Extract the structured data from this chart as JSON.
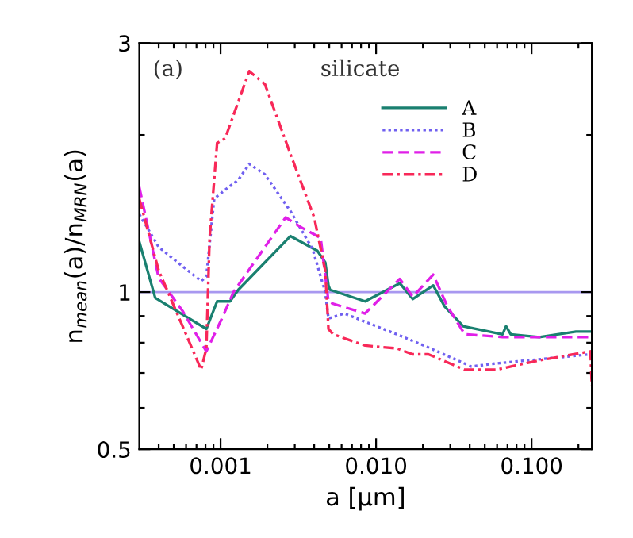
{
  "chart_data": {
    "type": "line",
    "xlabel": "a [μm]",
    "ylabel": "n$_{mean}$(a)/n$_{MRN}$(a)",
    "annotations": [
      "(a)",
      "silicate"
    ],
    "log": "xy",
    "xlim": [
      0.0003,
      0.244
    ],
    "ylim": [
      0.5,
      3
    ],
    "xticks": [
      {
        "value": 0.0004,
        "label": null
      },
      {
        "value": 0.0005,
        "label": null
      },
      {
        "value": 0.0006,
        "label": null
      },
      {
        "value": 0.0007,
        "label": null
      },
      {
        "value": 0.0008,
        "label": null
      },
      {
        "value": 0.0009,
        "label": null
      },
      {
        "value": 0.001,
        "label": "0.001"
      },
      {
        "value": 0.002,
        "label": null
      },
      {
        "value": 0.003,
        "label": null
      },
      {
        "value": 0.004,
        "label": null
      },
      {
        "value": 0.005,
        "label": null
      },
      {
        "value": 0.006,
        "label": null
      },
      {
        "value": 0.007,
        "label": null
      },
      {
        "value": 0.008,
        "label": null
      },
      {
        "value": 0.009,
        "label": null
      },
      {
        "value": 0.01,
        "label": "0.010"
      },
      {
        "value": 0.02,
        "label": null
      },
      {
        "value": 0.03,
        "label": null
      },
      {
        "value": 0.04,
        "label": null
      },
      {
        "value": 0.05,
        "label": null
      },
      {
        "value": 0.06,
        "label": null
      },
      {
        "value": 0.07,
        "label": null
      },
      {
        "value": 0.08,
        "label": null
      },
      {
        "value": 0.09,
        "label": null
      },
      {
        "value": 0.1,
        "label": "0.100"
      },
      {
        "value": 0.2,
        "label": null
      }
    ],
    "yticks": [
      0.5,
      {
        "value": 0.6,
        "label": null
      },
      {
        "value": 0.7,
        "label": null
      },
      {
        "value": 0.8,
        "label": null
      },
      {
        "value": 0.9,
        "label": null
      },
      1,
      {
        "value": 2,
        "label": null
      },
      3
    ],
    "grid": false,
    "legend": "top right",
    "ref_lines": [
      {
        "axis": "y",
        "value": 1,
        "color": "#a898f0"
      }
    ],
    "series": [
      {
        "name": "A",
        "color": "#1a8070",
        "line_style": "solid",
        "x": [
          0.0003,
          0.00038,
          0.00081,
          0.00095,
          0.00102,
          0.00115,
          0.0013,
          0.00281,
          0.00419,
          0.00471,
          0.00494,
          0.00506,
          0.0085,
          0.0142,
          0.0172,
          0.0233,
          0.0275,
          0.0363,
          0.065,
          0.0685,
          0.0735,
          0.112,
          0.193,
          0.239
        ],
        "values": [
          1.25,
          0.975,
          0.85,
          0.96,
          0.96,
          0.96,
          1.01,
          1.28,
          1.2,
          1.14,
          1.03,
          1.01,
          0.96,
          1.04,
          0.97,
          1.03,
          0.94,
          0.86,
          0.83,
          0.86,
          0.83,
          0.82,
          0.84,
          0.84
        ]
      },
      {
        "name": "B",
        "color": "#7060f0",
        "line_style": "dotted",
        "x": [
          0.0003,
          0.0004,
          0.00057,
          0.00075,
          0.00081,
          0.00091,
          0.00107,
          0.0013,
          0.00153,
          0.00193,
          0.00281,
          0.0039,
          0.00471,
          0.00494,
          0.00625,
          0.0136,
          0.0203,
          0.041,
          0.0593,
          0.0953,
          0.239
        ],
        "values": [
          1.41,
          1.22,
          1.12,
          1.05,
          1.07,
          1.51,
          1.57,
          1.64,
          1.76,
          1.68,
          1.43,
          1.21,
          1.0,
          0.89,
          0.91,
          0.83,
          0.79,
          0.72,
          0.73,
          0.74,
          0.76
        ]
      },
      {
        "name": "C",
        "color": "#e020e8",
        "line_style": "dashed",
        "x": [
          0.0003,
          0.0004,
          0.00057,
          0.00075,
          0.00081,
          0.00102,
          0.00121,
          0.00262,
          0.00331,
          0.0044,
          0.00494,
          0.0053,
          0.0085,
          0.0142,
          0.0172,
          0.0233,
          0.0287,
          0.0372,
          0.065,
          0.112,
          0.239
        ],
        "values": [
          1.59,
          1.065,
          0.92,
          0.8,
          0.77,
          0.89,
          1.0,
          1.39,
          1.33,
          1.27,
          0.96,
          0.95,
          0.91,
          1.06,
          0.98,
          1.08,
          0.94,
          0.83,
          0.82,
          0.82,
          0.82
        ]
      },
      {
        "name": "D",
        "color": "#f82858",
        "line_style": "dashdot",
        "x": [
          0.0003,
          0.0004,
          0.00057,
          0.00075,
          0.00081,
          0.00085,
          0.00095,
          0.00107,
          0.00153,
          0.00193,
          0.00281,
          0.004,
          0.00471,
          0.00494,
          0.0053,
          0.0085,
          0.0136,
          0.0172,
          0.0217,
          0.0372,
          0.0593,
          0.112,
          0.239,
          0.244
        ],
        "values": [
          1.51,
          1.1,
          0.86,
          0.71,
          0.78,
          1.27,
          1.93,
          1.97,
          2.65,
          2.5,
          1.84,
          1.39,
          1.1,
          0.85,
          0.83,
          0.79,
          0.78,
          0.76,
          0.76,
          0.71,
          0.71,
          0.74,
          0.77,
          0.66
        ]
      }
    ]
  }
}
